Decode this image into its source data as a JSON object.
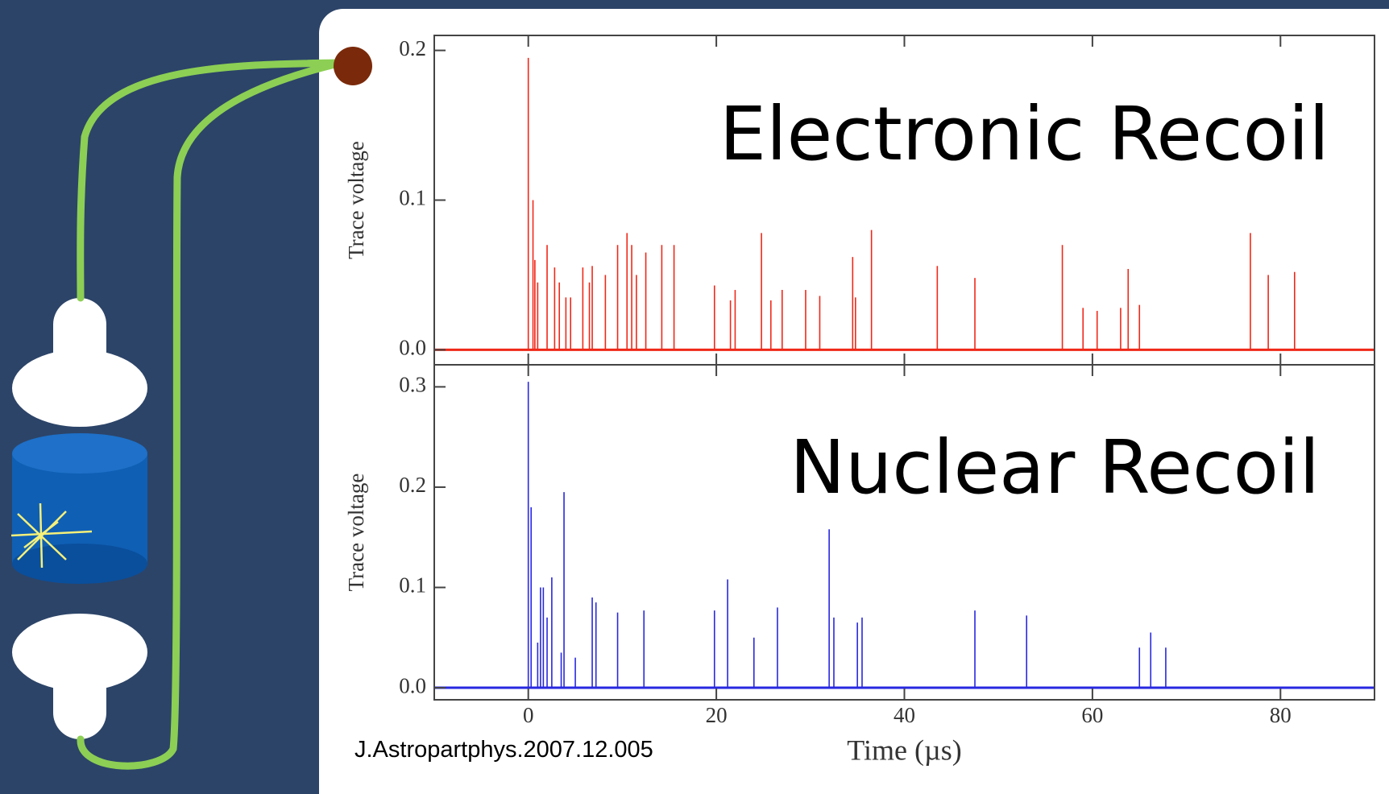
{
  "citation": "J.Astropartphys.2007.12.005",
  "chart_data": [
    {
      "type": "stem",
      "annotation": "Electronic Recoil",
      "y_label": "Trace voltage",
      "color": "#f02818",
      "x": [
        0,
        0.5,
        0.7,
        1.0,
        2,
        2.8,
        3.3,
        4,
        4.5,
        5.8,
        6.5,
        6.8,
        8.2,
        9.5,
        10.5,
        11,
        11.5,
        12.5,
        14.2,
        15.5,
        19.8,
        21.5,
        22,
        24.8,
        25.8,
        27,
        29.5,
        31,
        34.5,
        34.8,
        36.5,
        43.5,
        47.5,
        56.8,
        59,
        60.5,
        63,
        63.8,
        65,
        76.8,
        78.7,
        81.5
      ],
      "values": [
        0.195,
        0.1,
        0.06,
        0.045,
        0.07,
        0.055,
        0.045,
        0.035,
        0.035,
        0.055,
        0.045,
        0.056,
        0.05,
        0.07,
        0.078,
        0.07,
        0.05,
        0.065,
        0.07,
        0.07,
        0.043,
        0.033,
        0.04,
        0.078,
        0.033,
        0.04,
        0.04,
        0.036,
        0.062,
        0.035,
        0.08,
        0.056,
        0.048,
        0.07,
        0.028,
        0.026,
        0.028,
        0.054,
        0.03,
        0.078,
        0.05,
        0.052
      ],
      "xlim": [
        -10,
        90
      ],
      "xticks": [
        0,
        20,
        40,
        60,
        80
      ],
      "ylim": [
        -0.01,
        0.21
      ],
      "yticks": [
        {
          "value": 0,
          "label": "0.0"
        },
        0.1,
        0.2
      ]
    },
    {
      "type": "stem",
      "annotation": "Nuclear Recoil",
      "y_label": "Trace voltage",
      "x_label": "Time (µs)",
      "color": "#2828e0",
      "x": [
        0,
        0.3,
        1,
        1.3,
        1.6,
        2,
        2.5,
        3.5,
        3.8,
        5,
        6.8,
        7.2,
        9.5,
        12.3,
        19.8,
        21.2,
        24,
        26.5,
        32,
        32.5,
        35,
        35.5,
        47.5,
        53,
        65,
        66.2,
        67.8
      ],
      "values": [
        0.305,
        0.18,
        0.045,
        0.1,
        0.1,
        0.07,
        0.11,
        0.035,
        0.195,
        0.03,
        0.09,
        0.085,
        0.075,
        0.077,
        0.077,
        0.108,
        0.05,
        0.08,
        0.158,
        0.07,
        0.065,
        0.07,
        0.077,
        0.072,
        0.04,
        0.055,
        0.04
      ],
      "xlim": [
        -10,
        90
      ],
      "xticks": [
        0,
        20,
        40,
        60,
        80
      ],
      "ylim": [
        -0.012,
        0.322
      ],
      "yticks": [
        {
          "value": 0,
          "label": "0.0"
        },
        0.1,
        0.2,
        0.3
      ]
    }
  ]
}
